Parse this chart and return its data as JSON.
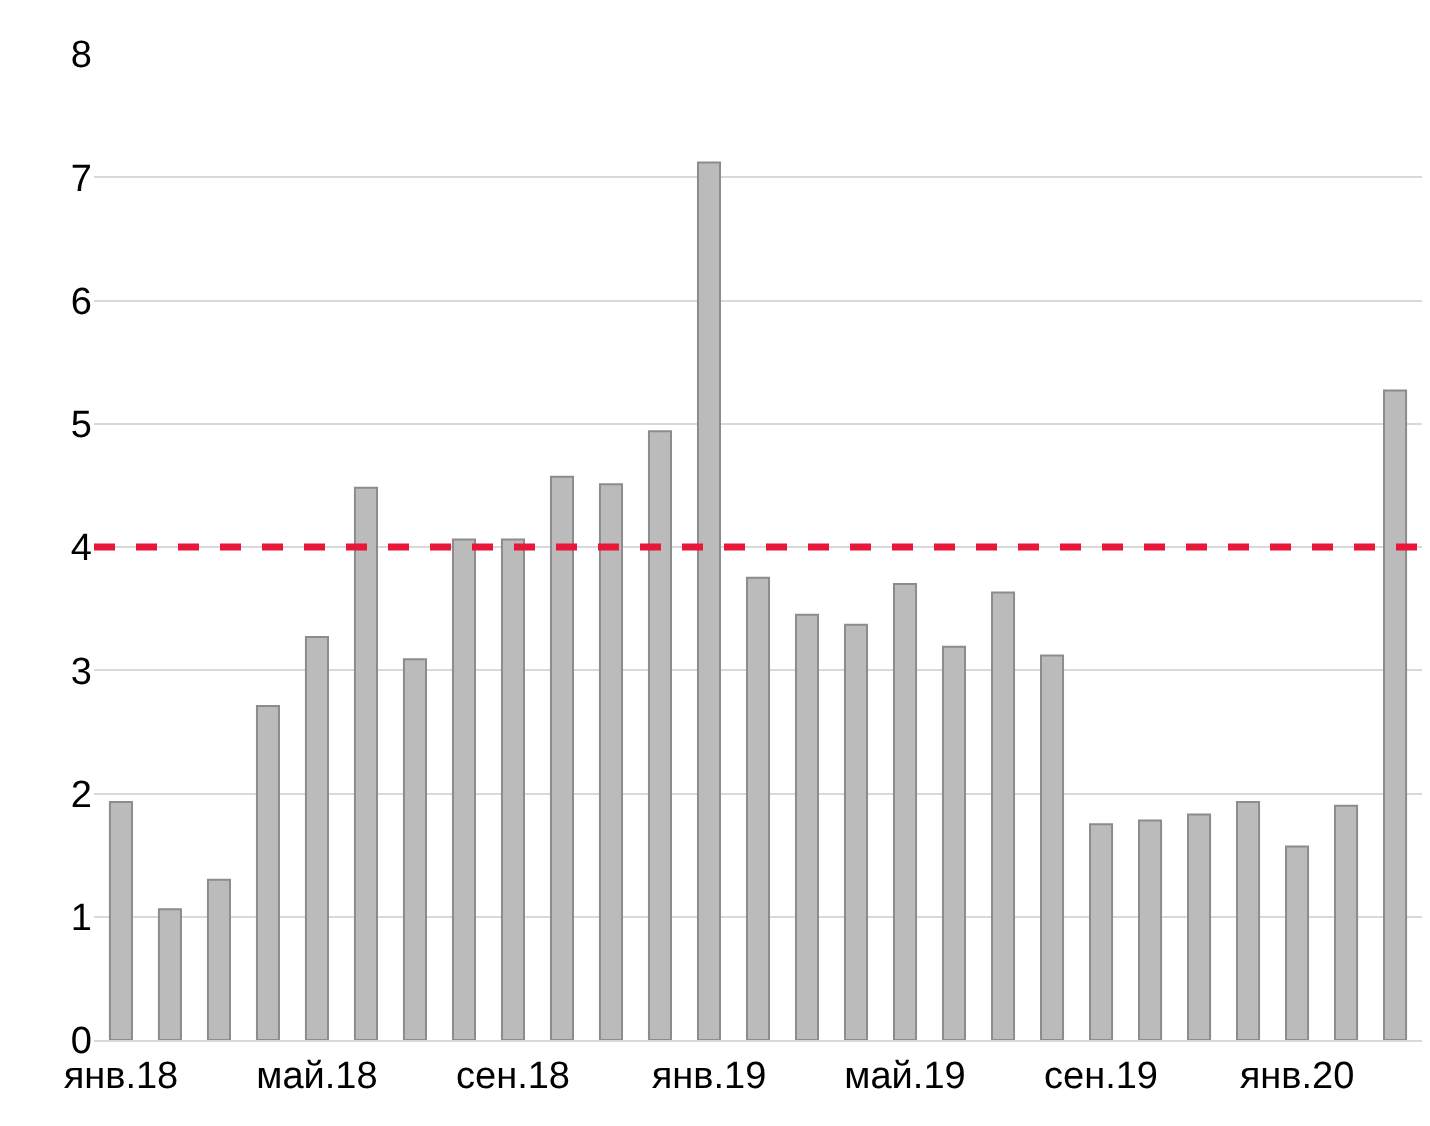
{
  "chart_data": {
    "type": "bar",
    "categories": [
      "янв.18",
      null,
      null,
      null,
      "май.18",
      null,
      null,
      null,
      "сен.18",
      null,
      null,
      null,
      "янв.19",
      null,
      null,
      null,
      "май.19",
      null,
      null,
      null,
      "сен.19",
      null,
      null,
      null,
      "янв.20",
      null,
      null
    ],
    "values": [
      1.93,
      1.06,
      1.3,
      2.71,
      3.27,
      4.48,
      3.09,
      4.06,
      4.06,
      4.57,
      4.51,
      4.94,
      7.12,
      3.75,
      3.45,
      3.37,
      3.7,
      3.19,
      3.63,
      3.12,
      1.75,
      1.78,
      1.83,
      1.93,
      1.57,
      1.9,
      5.27
    ],
    "color": "#bbbbbb",
    "ylim": [
      0,
      8
    ],
    "yticks": [
      0,
      1,
      2,
      3,
      4,
      5,
      6,
      7,
      8
    ],
    "grid": "y",
    "ref_lines": [
      {
        "axis": "y",
        "value": 4,
        "color": "#e8173a",
        "line_style": "dashed"
      }
    ]
  }
}
